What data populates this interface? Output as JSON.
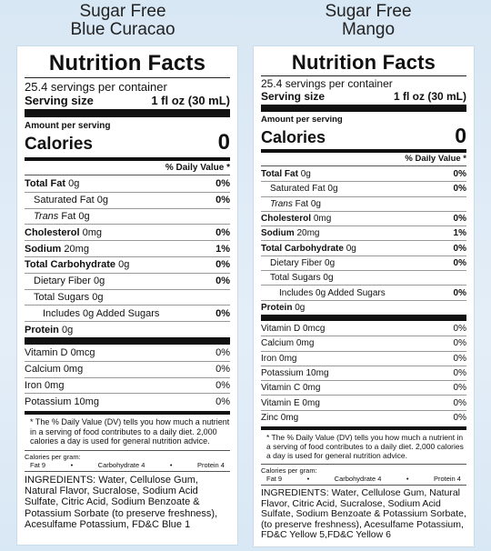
{
  "labels": [
    {
      "product": [
        "Sugar Free",
        "Blue Curacao"
      ],
      "heading": "Nutrition Facts",
      "servings": "25.4 servings per container",
      "serving_size": {
        "label": "Serving size",
        "value": "1 fl oz (30 mL)"
      },
      "amount_per_serving": "Amount per serving",
      "calories": {
        "label": "Calories",
        "value": "0"
      },
      "dv_header": "% Daily Value *",
      "nutrients": [
        {
          "label": "Total Fat",
          "amount": "0g",
          "dv": "0%",
          "sub": [
            {
              "label": "Saturated Fat",
              "amount": "0g",
              "dv": "0%"
            },
            {
              "italic_prefix": "Trans",
              "label": "Fat",
              "amount": "0g"
            }
          ]
        },
        {
          "label": "Cholesterol",
          "amount": "0mg",
          "dv": "0%"
        },
        {
          "label": "Sodium",
          "amount": "20mg",
          "dv": "1%"
        },
        {
          "label": "Total Carbohydrate",
          "amount": "0g",
          "dv": "0%",
          "sub": [
            {
              "label": "Dietary Fiber",
              "amount": "0g",
              "dv": "0%"
            },
            {
              "label": "Total Sugars",
              "amount": "0g",
              "sub": [
                {
                  "label": "Includes 0g Added Sugars",
                  "dv": "0%"
                }
              ]
            }
          ]
        },
        {
          "label": "Protein",
          "amount": "0g"
        }
      ],
      "vitamins": [
        {
          "label": "Vitamin D",
          "amount": "0mcg",
          "dv": "0%"
        },
        {
          "label": "Calcium",
          "amount": "0mg",
          "dv": "0%"
        },
        {
          "label": "Iron",
          "amount": "0mg",
          "dv": "0%"
        },
        {
          "label": "Potassium",
          "amount": "10mg",
          "dv": "0%"
        }
      ],
      "footnote": "* The % Daily Value (DV) tells you how much a nutrient in a serving of food contributes to a daily diet. 2,000 calories a day is used for general nutrition advice.",
      "calories_per_gram": {
        "label": "Calories per gram:",
        "items": [
          "Fat 9",
          "Carbohydrate 4",
          "Protein 4"
        ],
        "separator": "•"
      },
      "ingredients": "INGREDIENTS: Water, Cellulose Gum, Natural Flavor, Sucralose, Sodium Acid Sulfate, Citric Acid, Sodium Benzoate & Potassium Sorbate (to preserve freshness), Acesulfame Potassium, FD&C Blue 1"
    },
    {
      "product": [
        "Sugar Free",
        "Mango"
      ],
      "heading": "Nutrition Facts",
      "servings": "25.4 servings per container",
      "serving_size": {
        "label": "Serving size",
        "value": "1 fl oz (30 mL)"
      },
      "amount_per_serving": "Amount per serving",
      "calories": {
        "label": "Calories",
        "value": "0"
      },
      "dv_header": "% Daily Value *",
      "nutrients": [
        {
          "label": "Total Fat",
          "amount": "0g",
          "dv": "0%",
          "sub": [
            {
              "label": "Saturated Fat",
              "amount": "0g",
              "dv": "0%"
            },
            {
              "italic_prefix": "Trans",
              "label": "Fat",
              "amount": "0g"
            }
          ]
        },
        {
          "label": "Cholesterol",
          "amount": "0mg",
          "dv": "0%"
        },
        {
          "label": "Sodium",
          "amount": "20mg",
          "dv": "1%"
        },
        {
          "label": "Total Carbohydrate",
          "amount": "0g",
          "dv": "0%",
          "sub": [
            {
              "label": "Dietary Fiber",
              "amount": "0g",
              "dv": "0%"
            },
            {
              "label": "Total Sugars",
              "amount": "0g",
              "sub": [
                {
                  "label": "Includes 0g Added Sugars",
                  "dv": "0%"
                }
              ]
            }
          ]
        },
        {
          "label": "Protein",
          "amount": "0g"
        }
      ],
      "vitamins": [
        {
          "label": "Vitamin D",
          "amount": "0mcg",
          "dv": "0%"
        },
        {
          "label": "Calcium",
          "amount": "0mg",
          "dv": "0%"
        },
        {
          "label": "Iron",
          "amount": "0mg",
          "dv": "0%"
        },
        {
          "label": "Potassium",
          "amount": "10mg",
          "dv": "0%"
        },
        {
          "label": "Vitamin C",
          "amount": "0mg",
          "dv": "0%"
        },
        {
          "label": "Vitamin E",
          "amount": "0mg",
          "dv": "0%"
        },
        {
          "label": "Zinc",
          "amount": "0mg",
          "dv": "0%"
        }
      ],
      "footnote": "* The % Daily Value (DV) tells you how much a nutrient in a serving of food contributes to a daily diet. 2,000 calories a day is used for general nutrition advice.",
      "calories_per_gram": {
        "label": "Calories per gram:",
        "items": [
          "Fat 9",
          "Carbohydrate 4",
          "Protein 4"
        ],
        "separator": "•"
      },
      "ingredients": "INGREDIENTS: Water, Cellulose Gum, Natural Flavor, Citric Acid, Sucralose, Sodium Acid Sulfate, Sodium Benzoate & Potassium Sorbate, (to preserve freshness), Acesulfame Potassium, FD&C Yellow 5,FD&C Yellow 6"
    }
  ]
}
